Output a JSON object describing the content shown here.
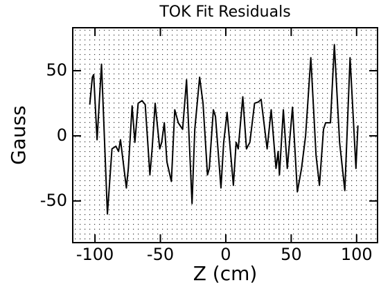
{
  "chart_data": {
    "type": "line",
    "title": "TOK Fit Residuals",
    "xlabel": "Z (cm)",
    "ylabel": "Gauss",
    "x": [
      -104,
      -102,
      -101,
      -98.4,
      -95,
      -90.5,
      -87,
      -84,
      -82,
      -80.5,
      -76,
      -74.5,
      -71.6,
      -69.5,
      -67,
      -64,
      -61.6,
      -58,
      -56.3,
      -54,
      -50.5,
      -49,
      -47,
      -45,
      -41.6,
      -39,
      -36.3,
      -33,
      -30,
      -25.8,
      -23.7,
      -20,
      -17.4,
      -14,
      -12.6,
      -9.5,
      -7.9,
      -3.7,
      -1.6,
      1,
      5.8,
      7.9,
      9.5,
      13,
      15.8,
      18.4,
      22,
      25,
      27,
      31.6,
      34.7,
      38.4,
      40,
      41,
      44,
      47,
      51,
      54.7,
      57.9,
      61,
      65,
      69,
      71.6,
      74.7,
      76.3,
      77.9,
      80,
      83,
      87,
      91,
      95,
      99.5,
      101
    ],
    "values": [
      24,
      45,
      47,
      -3,
      55,
      -60,
      -10,
      -8,
      -12,
      -3,
      -40,
      -25,
      23,
      -5,
      25,
      27,
      24,
      -30,
      -10,
      25,
      -10,
      -5,
      10,
      -20,
      -35,
      20,
      10,
      5,
      43,
      -52,
      5,
      45,
      25,
      -30,
      -25,
      20,
      15,
      -40,
      -5,
      18,
      -38,
      -5,
      -10,
      30,
      -10,
      -5,
      25,
      26,
      28,
      -10,
      20,
      -25,
      -12,
      -30,
      20,
      -25,
      22,
      -43,
      -25,
      0,
      60,
      -15,
      -38,
      5,
      10,
      10,
      10,
      70,
      -5,
      -42,
      60,
      -25,
      8
    ],
    "color": "#000000",
    "xlim": [
      -117,
      116
    ],
    "xticks": [
      -100,
      -50,
      0,
      50,
      100
    ],
    "ylim": [
      -82,
      83
    ],
    "yticks": [
      -50,
      0,
      50
    ],
    "grid": true
  }
}
